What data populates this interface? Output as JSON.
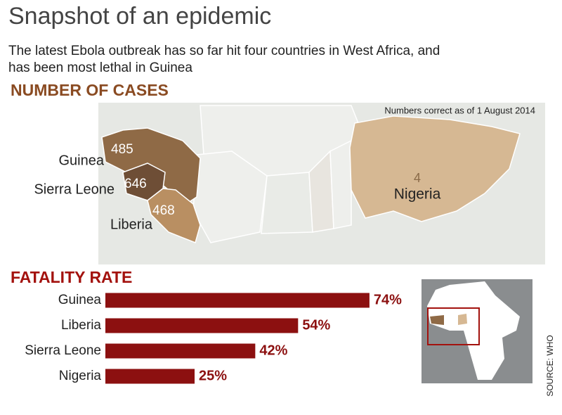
{
  "title": "Snapshot of an epidemic",
  "subtitle": [
    "The latest Ebola outbreak has so far hit four countries in West Africa, and",
    "has been most lethal in Guinea"
  ],
  "map": {
    "heading": "NUMBER OF CASES",
    "note": "Numbers correct as of 1 August 2014",
    "countries": [
      {
        "name": "Guinea",
        "cases": 485
      },
      {
        "name": "Sierra Leone",
        "cases": 646
      },
      {
        "name": "Liberia",
        "cases": 468
      },
      {
        "name": "Nigeria",
        "cases": 4
      }
    ]
  },
  "chart_data": {
    "type": "bar",
    "orientation": "horizontal",
    "title": "FATALITY RATE",
    "categories": [
      "Guinea",
      "Liberia",
      "Sierra Leone",
      "Nigeria"
    ],
    "values": [
      74,
      54,
      42,
      25
    ],
    "value_labels": [
      "74%",
      "54%",
      "42%",
      "25%"
    ],
    "color": "#8c1010"
  },
  "source": "SOURCE: WHO"
}
